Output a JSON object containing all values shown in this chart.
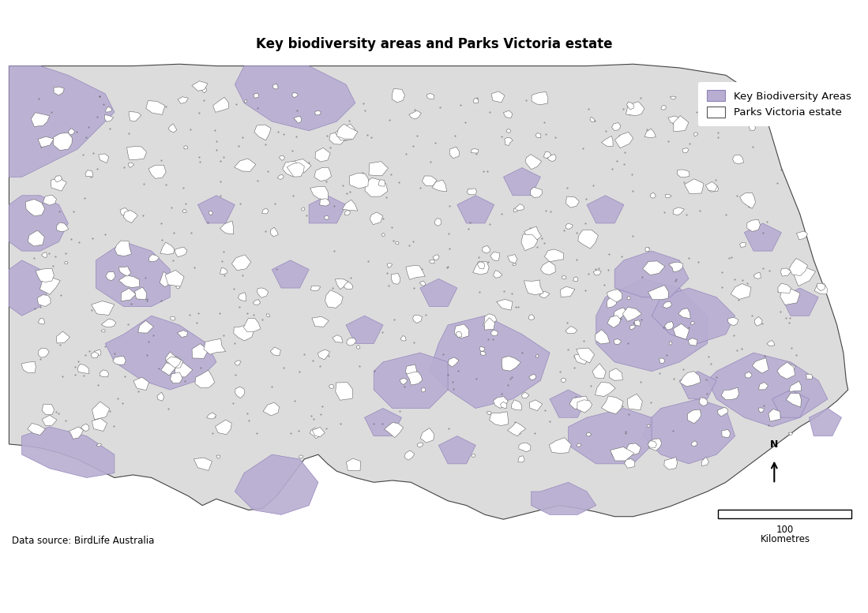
{
  "title": "Key biodiversity areas and Parks Victoria estate",
  "title_fontsize": 12,
  "title_fontweight": "bold",
  "kba_color": "#b8aed2",
  "kba_edge_color": "#9080b8",
  "parks_color": "#dcdcdc",
  "parks_edge_color": "#444444",
  "background_color": "#ffffff",
  "vic_fill_color": "#dcdcdc",
  "vic_edge_color": "#444444",
  "legend_kba_label": "Key Biodiversity Areas",
  "legend_parks_label": "Parks Victoria estate",
  "datasource_text": "Data source: BirdLife Australia",
  "north_arrow_text": "N",
  "scalebar_label": "100",
  "scalebar_unit": "Kilometres",
  "fig_width": 10.99,
  "fig_height": 7.77,
  "xlim": [
    140.9,
    150.2
  ],
  "ylim": [
    -39.3,
    -33.9
  ]
}
